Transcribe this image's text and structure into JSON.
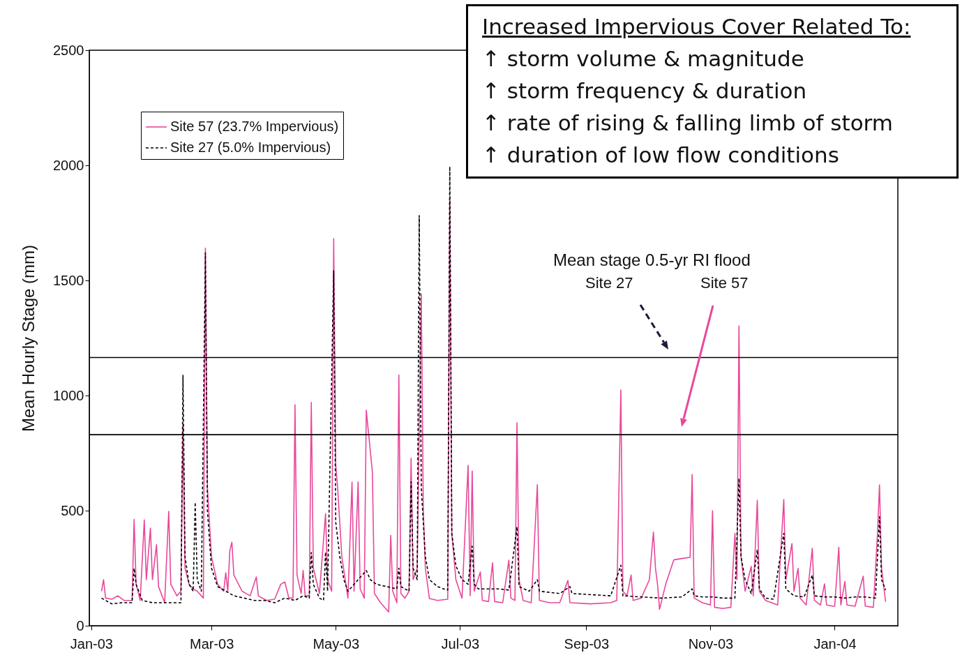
{
  "chart_data": {
    "type": "line",
    "ylabel": "Mean Hourly Stage (mm)",
    "xlim": [
      "2002-12-31",
      "2004-02-01"
    ],
    "xticks": [
      {
        "value": "2003-01-01",
        "label": "Jan-03"
      },
      {
        "value": "2003-03-01",
        "label": "Mar-03"
      },
      {
        "value": "2003-05-01",
        "label": "May-03"
      },
      {
        "value": "2003-07-01",
        "label": "Jul-03"
      },
      {
        "value": "2003-09-01",
        "label": "Sep-03"
      },
      {
        "value": "2003-11-01",
        "label": "Nov-03"
      },
      {
        "value": "2004-01-01",
        "label": "Jan-04"
      }
    ],
    "ylim": [
      0,
      2500
    ],
    "yticks": [
      0,
      500,
      1000,
      1500,
      2000,
      2500
    ],
    "legend": "top left",
    "series": [
      {
        "name": "Site 57 (23.7% Impervious)",
        "color": "#e8489a",
        "line_style": "solid",
        "x": [
          "2003-01-06",
          "2003-01-07",
          "2003-01-08",
          "2003-01-11",
          "2003-01-14",
          "2003-01-17",
          "2003-01-21",
          "2003-01-22",
          "2003-01-23",
          "2003-01-25",
          "2003-01-27",
          "2003-01-28",
          "2003-01-30",
          "2003-01-31",
          "2003-02-02",
          "2003-02-03",
          "2003-02-06",
          "2003-02-08",
          "2003-02-09",
          "2003-02-12",
          "2003-02-14",
          "2003-02-15",
          "2003-02-16",
          "2003-02-18",
          "2003-02-20",
          "2003-02-22",
          "2003-02-25",
          "2003-02-26",
          "2003-02-27",
          "2003-03-01",
          "2003-03-04",
          "2003-03-07",
          "2003-03-08",
          "2003-03-09",
          "2003-03-10",
          "2003-03-11",
          "2003-03-12",
          "2003-03-16",
          "2003-03-20",
          "2003-03-23",
          "2003-03-24",
          "2003-03-28",
          "2003-04-01",
          "2003-04-04",
          "2003-04-06",
          "2003-04-08",
          "2003-04-10",
          "2003-04-11",
          "2003-04-12",
          "2003-04-14",
          "2003-04-15",
          "2003-04-16",
          "2003-04-18",
          "2003-04-19",
          "2003-04-20",
          "2003-04-23",
          "2003-04-26",
          "2003-04-27",
          "2003-04-29",
          "2003-04-30",
          "2003-05-01",
          "2003-05-02",
          "2003-05-04",
          "2003-05-07",
          "2003-05-09",
          "2003-05-10",
          "2003-05-12",
          "2003-05-13",
          "2003-05-15",
          "2003-05-16",
          "2003-05-19",
          "2003-05-20",
          "2003-05-23",
          "2003-05-27",
          "2003-05-28",
          "2003-05-29",
          "2003-05-31",
          "2003-06-01",
          "2003-06-02",
          "2003-06-04",
          "2003-06-06",
          "2003-06-07",
          "2003-06-08",
          "2003-06-10",
          "2003-06-12",
          "2003-06-13",
          "2003-06-14",
          "2003-06-16",
          "2003-06-20",
          "2003-06-25",
          "2003-06-26",
          "2003-06-27",
          "2003-06-29",
          "2003-07-02",
          "2003-07-05",
          "2003-07-06",
          "2003-07-07",
          "2003-07-08",
          "2003-07-11",
          "2003-07-12",
          "2003-07-15",
          "2003-07-17",
          "2003-07-18",
          "2003-07-22",
          "2003-07-25",
          "2003-07-26",
          "2003-07-28",
          "2003-07-29",
          "2003-07-30",
          "2003-08-01",
          "2003-08-05",
          "2003-08-08",
          "2003-08-09",
          "2003-08-14",
          "2003-08-19",
          "2003-08-23",
          "2003-08-24",
          "2003-09-03",
          "2003-09-13",
          "2003-09-16",
          "2003-09-18",
          "2003-09-19",
          "2003-09-21",
          "2003-09-23",
          "2003-09-24",
          "2003-09-28",
          "2003-10-02",
          "2003-10-04",
          "2003-10-05",
          "2003-10-06",
          "2003-10-07",
          "2003-10-10",
          "2003-10-14",
          "2003-10-18",
          "2003-10-22",
          "2003-10-23",
          "2003-10-24",
          "2003-10-28",
          "2003-11-01",
          "2003-11-02",
          "2003-11-03",
          "2003-11-07",
          "2003-11-11",
          "2003-11-13",
          "2003-11-14",
          "2003-11-15",
          "2003-11-16",
          "2003-11-18",
          "2003-11-21",
          "2003-11-22",
          "2003-11-24",
          "2003-11-25",
          "2003-11-28",
          "2003-12-01",
          "2003-12-04",
          "2003-12-07",
          "2003-12-08",
          "2003-12-11",
          "2003-12-12",
          "2003-12-14",
          "2003-12-15",
          "2003-12-18",
          "2003-12-21",
          "2003-12-22",
          "2003-12-25",
          "2003-12-27",
          "2003-12-28",
          "2003-12-31",
          "2004-01-01",
          "2004-01-03",
          "2004-01-04",
          "2004-01-06",
          "2004-01-07",
          "2004-01-11",
          "2004-01-15",
          "2004-01-16",
          "2004-01-20",
          "2004-01-22",
          "2004-01-23",
          "2004-01-24",
          "2004-01-26"
        ],
        "values": [
          150,
          200,
          120,
          115,
          130,
          110,
          110,
          462,
          180,
          110,
          460,
          200,
          424,
          200,
          352,
          170,
          100,
          497,
          180,
          130,
          150,
          870,
          250,
          180,
          160,
          150,
          120,
          1640,
          600,
          300,
          180,
          150,
          230,
          150,
          327,
          363,
          220,
          150,
          130,
          212,
          130,
          110,
          115,
          180,
          190,
          120,
          120,
          960,
          220,
          140,
          240,
          130,
          130,
          970,
          250,
          140,
          487,
          200,
          150,
          1682,
          700,
          590,
          300,
          120,
          624,
          150,
          625,
          160,
          120,
          936,
          668,
          140,
          100,
          60,
          392,
          150,
          100,
          1089,
          140,
          120,
          150,
          727,
          200,
          250,
          1442,
          500,
          250,
          118,
          110,
          115,
          1850,
          400,
          200,
          120,
          697,
          130,
          672,
          150,
          233,
          110,
          105,
          273,
          105,
          100,
          285,
          120,
          110,
          882,
          200,
          110,
          100,
          613,
          110,
          100,
          100,
          197,
          100,
          95,
          100,
          110,
          1024,
          150,
          130,
          220,
          110,
          120,
          200,
          407,
          250,
          180,
          71,
          180,
          286,
          292,
          297,
          657,
          120,
          100,
          90,
          500,
          80,
          75,
          80,
          401,
          200,
          1302,
          300,
          150,
          258,
          130,
          545,
          150,
          110,
          100,
          90,
          548,
          200,
          357,
          150,
          249,
          120,
          90,
          336,
          110,
          90,
          182,
          90,
          85,
          85,
          341,
          90,
          192,
          90,
          85,
          215,
          85,
          80,
          400,
          612,
          250,
          104
        ]
      },
      {
        "name": "Site 27 (5.0% Impervious)",
        "color": "#000000",
        "line_style": "dashed",
        "x": [
          "2003-01-06",
          "2003-01-11",
          "2003-01-16",
          "2003-01-21",
          "2003-01-22",
          "2003-01-23",
          "2003-01-26",
          "2003-01-31",
          "2003-02-05",
          "2003-02-10",
          "2003-02-14",
          "2003-02-15",
          "2003-02-16",
          "2003-02-18",
          "2003-02-20",
          "2003-02-21",
          "2003-02-22",
          "2003-02-24",
          "2003-02-26",
          "2003-02-27",
          "2003-03-01",
          "2003-03-04",
          "2003-03-08",
          "2003-03-12",
          "2003-03-17",
          "2003-03-22",
          "2003-03-27",
          "2003-04-01",
          "2003-04-06",
          "2003-04-11",
          "2003-04-15",
          "2003-04-18",
          "2003-04-19",
          "2003-04-20",
          "2003-04-23",
          "2003-04-25",
          "2003-04-26",
          "2003-04-27",
          "2003-04-30",
          "2003-05-01",
          "2003-05-03",
          "2003-05-05",
          "2003-05-07",
          "2003-05-09",
          "2003-05-11",
          "2003-05-16",
          "2003-05-18",
          "2003-05-21",
          "2003-05-26",
          "2003-05-31",
          "2003-06-01",
          "2003-06-02",
          "2003-06-06",
          "2003-06-07",
          "2003-06-08",
          "2003-06-10",
          "2003-06-11",
          "2003-06-12",
          "2003-06-14",
          "2003-06-16",
          "2003-06-20",
          "2003-06-23",
          "2003-06-25",
          "2003-06-26",
          "2003-06-27",
          "2003-06-29",
          "2003-07-02",
          "2003-07-05",
          "2003-07-07",
          "2003-07-08",
          "2003-07-10",
          "2003-07-15",
          "2003-07-20",
          "2003-07-25",
          "2003-07-29",
          "2003-07-30",
          "2003-08-04",
          "2003-08-08",
          "2003-08-09",
          "2003-08-14",
          "2003-08-19",
          "2003-08-24",
          "2003-08-25",
          "2003-09-03",
          "2003-09-13",
          "2003-09-18",
          "2003-09-19",
          "2003-09-28",
          "2003-10-08",
          "2003-10-18",
          "2003-10-23",
          "2003-10-24",
          "2003-10-28",
          "2003-11-02",
          "2003-11-07",
          "2003-11-13",
          "2003-11-15",
          "2003-11-16",
          "2003-11-18",
          "2003-11-21",
          "2003-11-24",
          "2003-11-25",
          "2003-11-28",
          "2003-12-02",
          "2003-12-07",
          "2003-12-08",
          "2003-12-12",
          "2003-12-17",
          "2003-12-21",
          "2003-12-22",
          "2003-12-27",
          "2004-01-01",
          "2004-01-06",
          "2004-01-11",
          "2004-01-16",
          "2004-01-21",
          "2004-01-23",
          "2004-01-24",
          "2004-01-26"
        ],
        "values": [
          120,
          95,
          100,
          100,
          250,
          180,
          110,
          100,
          100,
          100,
          100,
          1088,
          300,
          180,
          150,
          536,
          200,
          150,
          1620,
          500,
          250,
          170,
          150,
          130,
          120,
          110,
          110,
          100,
          120,
          110,
          130,
          120,
          318,
          180,
          120,
          110,
          320,
          150,
          1542,
          450,
          300,
          200,
          150,
          170,
          190,
          240,
          200,
          180,
          170,
          160,
          250,
          170,
          150,
          625,
          250,
          200,
          1782,
          600,
          300,
          200,
          170,
          160,
          155,
          1995,
          400,
          260,
          200,
          180,
          345,
          180,
          160,
          160,
          160,
          155,
          430,
          170,
          150,
          200,
          150,
          145,
          140,
          170,
          140,
          135,
          130,
          263,
          130,
          125,
          120,
          125,
          160,
          130,
          125,
          125,
          120,
          120,
          640,
          300,
          200,
          140,
          330,
          160,
          120,
          115,
          401,
          160,
          130,
          125,
          220,
          130,
          125,
          125,
          120,
          125,
          125,
          120,
          473,
          200,
          155
        ]
      }
    ],
    "ref_lines": [
      {
        "axis": "y",
        "value": 1165,
        "color": "#000000"
      },
      {
        "axis": "y",
        "value": 830,
        "color": "#000000"
      }
    ],
    "annotations": [
      "Mean stage 0.5-yr RI flood",
      "Site 27",
      "Site 57",
      "Increased Impervious Cover Related To:",
      "↑ storm volume & magnitude",
      "↑ storm frequency & duration",
      "↑ rate of rising & falling limb of storm",
      "↑ duration of low flow conditions"
    ]
  }
}
